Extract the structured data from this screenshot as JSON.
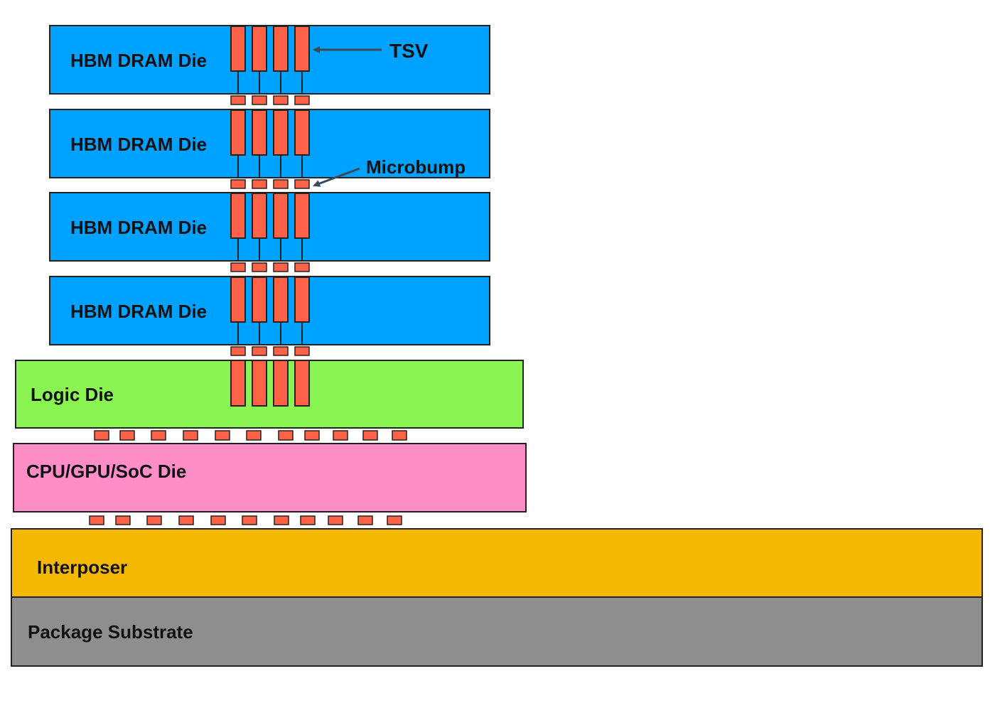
{
  "layers": {
    "dram": [
      {
        "label": "HBM DRAM Die"
      },
      {
        "label": "HBM DRAM Die"
      },
      {
        "label": "HBM DRAM Die"
      },
      {
        "label": "HBM DRAM Die"
      }
    ],
    "logic": {
      "label": "Logic Die"
    },
    "soc": {
      "label": "CPU/GPU/SoC Die"
    },
    "interposer": {
      "label": "Interposer"
    },
    "substrate": {
      "label": "Package Substrate"
    }
  },
  "annotations": {
    "tsv": "TSV",
    "microbump": "Microbump"
  },
  "colors": {
    "dram": "#00A2FF",
    "logic": "#8AF552",
    "soc": "#FF8DC8",
    "interposer": "#F5B800",
    "substrate": "#8E8E8E",
    "tsv": "#FF6247",
    "outline": "#222222",
    "arrow": "#3A4A5A"
  }
}
